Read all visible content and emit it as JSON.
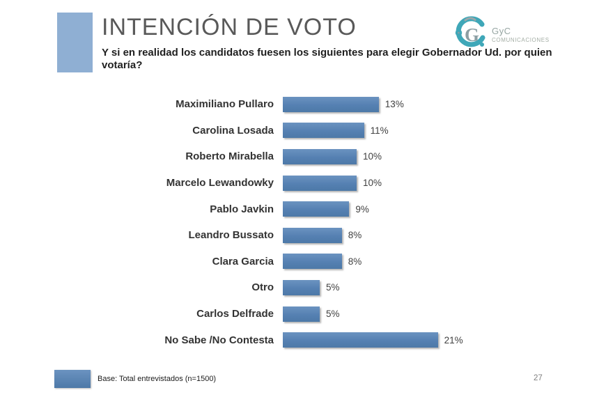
{
  "slide": {
    "title": "INTENCIÓN DE VOTO",
    "subtitle": "Y si en realidad los candidatos fuesen los siguientes para elegir Gobernador Ud. por quien votaría?",
    "footer_note": "Base: Total entrevistados (n=1500)",
    "page_number": "27"
  },
  "logo": {
    "name": "GyC",
    "subtext": "COMUNICACIONES"
  },
  "colors": {
    "bar": "#5580B2",
    "bar_light": "#6B93C0",
    "bar_dark": "#4D79A8",
    "title_square": "#8FAFD3",
    "title_text": "#595959",
    "logo_teal": "#3FA7B8"
  },
  "chart_data": {
    "type": "bar",
    "orientation": "horizontal",
    "title": "INTENCIÓN DE VOTO",
    "categories": [
      "Maximiliano Pullaro",
      "Carolina Losada",
      "Roberto Mirabella",
      "Marcelo Lewandowky",
      "Pablo Javkin",
      "Leandro Bussato",
      "Clara Garcia",
      "Otro",
      "Carlos Delfrade",
      "No Sabe /No Contesta"
    ],
    "values": [
      13,
      11,
      10,
      10,
      9,
      8,
      8,
      5,
      5,
      21
    ],
    "value_labels": [
      "13%",
      "11%",
      "10%",
      "10%",
      "9%",
      "8%",
      "8%",
      "5%",
      "5%",
      "21%"
    ],
    "xlim": [
      0,
      21
    ],
    "grid": false,
    "legend": false,
    "value_labels_position": "end-of-bar"
  }
}
